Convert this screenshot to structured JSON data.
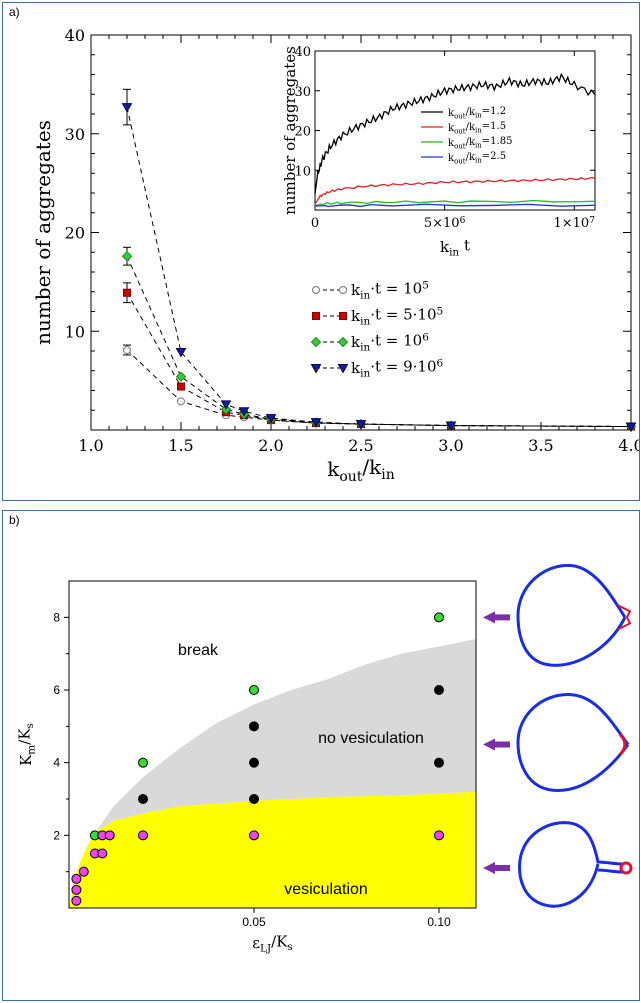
{
  "panel_a_label": "a)",
  "panel_b_label": "b)",
  "chart_data": [
    {
      "type": "line",
      "panel": "a",
      "xlabel": "k_out/k_in",
      "ylabel": "number of aggregates",
      "xlim": [
        1.0,
        4.0
      ],
      "ylim": [
        0,
        40
      ],
      "xticks": [
        "1.0",
        "1.5",
        "2.0",
        "2.5",
        "3.0",
        "3.5",
        "4.0"
      ],
      "yticks": [
        "10",
        "20",
        "30",
        "40"
      ],
      "x": [
        1.2,
        1.5,
        1.75,
        1.85,
        2.0,
        2.25,
        2.5,
        3.0,
        4.0
      ],
      "series": [
        {
          "name": "k_in·t = 10^5",
          "marker": "circle",
          "color": "#888888",
          "fill": "#ffffff",
          "values": [
            8.1,
            2.9,
            1.5,
            1.3,
            1.0,
            0.7,
            0.6,
            0.45,
            0.35
          ],
          "error": [
            0.5,
            0,
            0,
            0,
            0,
            0,
            0,
            0,
            0
          ]
        },
        {
          "name": "k_in·t = 5·10^5",
          "marker": "square",
          "color": "#cc0000",
          "fill": "#cc0000",
          "values": [
            13.9,
            4.4,
            1.8,
            1.5,
            1.0,
            0.7,
            0.6,
            0.45,
            0.35
          ],
          "error": [
            1.0,
            0,
            0,
            0,
            0,
            0,
            0,
            0,
            0
          ]
        },
        {
          "name": "k_in·t = 10^6",
          "marker": "diamond",
          "color": "#33cc33",
          "fill": "#33cc33",
          "values": [
            17.6,
            5.4,
            2.1,
            1.6,
            1.1,
            0.75,
            0.6,
            0.45,
            0.35
          ],
          "error": [
            0.9,
            0,
            0,
            0,
            0,
            0,
            0,
            0,
            0
          ]
        },
        {
          "name": "k_in·t = 9·10^6",
          "marker": "triangle-down",
          "color": "#1a1a99",
          "fill": "#1a1a99",
          "values": [
            32.7,
            7.9,
            2.6,
            1.9,
            1.2,
            0.8,
            0.6,
            0.45,
            0.35
          ],
          "error": [
            1.8,
            0,
            0,
            0,
            0,
            0,
            0,
            0,
            0
          ]
        }
      ]
    },
    {
      "type": "line",
      "panel": "a-inset",
      "xlabel": "k_in t",
      "ylabel": "number of aggregates",
      "xlim": [
        0,
        10000000
      ],
      "ylim": [
        0,
        40
      ],
      "xticks": [
        "0",
        "5×10^6",
        "1×10^7"
      ],
      "yticks": [
        "10",
        "20",
        "30",
        "40"
      ],
      "series": [
        {
          "name": "k_out/k_in=1.2",
          "color": "#000000",
          "x": [
            0,
            100000,
            300000,
            600000,
            1000000,
            1500000,
            2000000,
            2500000,
            3000000,
            3500000,
            4000000,
            4500000,
            5000000,
            5500000,
            6000000,
            6500000,
            7000000,
            7500000,
            8000000,
            8500000,
            9000000,
            9500000,
            10000000,
            10800000
          ],
          "values": [
            4,
            9,
            13,
            16,
            18.5,
            20.5,
            22,
            23.5,
            25.5,
            26.5,
            27.5,
            28.5,
            30,
            30.5,
            31,
            31.5,
            31,
            32.5,
            31.5,
            32.5,
            32,
            33.5,
            31.5,
            29
          ]
        },
        {
          "name": "k_out/k_in=1.5",
          "color": "#dd2222",
          "x": [
            0,
            200000,
            500000,
            1000000,
            2000000,
            3000000,
            4000000,
            5000000,
            6000000,
            7000000,
            8000000,
            9000000,
            10000000,
            10800000
          ],
          "values": [
            1.5,
            3.5,
            4.5,
            5.3,
            6.0,
            6.4,
            6.6,
            7.0,
            7.1,
            7.3,
            7.4,
            7.6,
            7.8,
            8.0
          ]
        },
        {
          "name": "k_out/k_in=1.85",
          "color": "#22bb22",
          "x": [
            0,
            200000,
            1000000,
            3000000,
            6000000,
            10800000
          ],
          "values": [
            1.0,
            1.5,
            1.8,
            2.0,
            2.1,
            2.2
          ]
        },
        {
          "name": "k_out/k_in=2.5",
          "color": "#2233cc",
          "x": [
            0,
            500000,
            3000000,
            10800000
          ],
          "values": [
            1.0,
            1.1,
            1.2,
            1.2
          ]
        }
      ]
    },
    {
      "type": "scatter",
      "panel": "b",
      "xlabel": "ε_LJ/K_s",
      "ylabel": "K_m/K_s",
      "xlim": [
        0,
        0.11
      ],
      "ylim": [
        0,
        9
      ],
      "xticks": [
        "0.05",
        "0.10"
      ],
      "yticks": [
        "2",
        "4",
        "6",
        "8"
      ],
      "regions": [
        "break",
        "no vesiculation",
        "vesiculation"
      ],
      "points": [
        {
          "x": 0.1,
          "y": 8,
          "class": "green"
        },
        {
          "x": 0.05,
          "y": 6,
          "class": "green"
        },
        {
          "x": 0.1,
          "y": 6,
          "class": "black"
        },
        {
          "x": 0.05,
          "y": 5,
          "class": "black"
        },
        {
          "x": 0.02,
          "y": 4,
          "class": "green"
        },
        {
          "x": 0.05,
          "y": 4,
          "class": "black"
        },
        {
          "x": 0.1,
          "y": 4,
          "class": "black"
        },
        {
          "x": 0.02,
          "y": 3,
          "class": "black"
        },
        {
          "x": 0.05,
          "y": 3,
          "class": "black"
        },
        {
          "x": 0.007,
          "y": 2,
          "class": "green"
        },
        {
          "x": 0.009,
          "y": 2,
          "class": "magenta"
        },
        {
          "x": 0.011,
          "y": 2,
          "class": "magenta"
        },
        {
          "x": 0.02,
          "y": 2,
          "class": "magenta"
        },
        {
          "x": 0.05,
          "y": 2,
          "class": "magenta"
        },
        {
          "x": 0.1,
          "y": 2,
          "class": "magenta"
        },
        {
          "x": 0.007,
          "y": 1.5,
          "class": "magenta"
        },
        {
          "x": 0.009,
          "y": 1.5,
          "class": "magenta"
        },
        {
          "x": 0.004,
          "y": 1.0,
          "class": "magenta"
        },
        {
          "x": 0.002,
          "y": 0.8,
          "class": "magenta"
        },
        {
          "x": 0.002,
          "y": 0.5,
          "class": "magenta"
        },
        {
          "x": 0.002,
          "y": 0.2,
          "class": "magenta"
        }
      ],
      "colors": {
        "green": "#33dd33",
        "black": "#000000",
        "magenta": "#ee44ee",
        "grey_region": "#d9d9d9",
        "yellow_region": "#ffff00",
        "arrow": "#7a2ea8",
        "shape_blue": "#1a2ee0",
        "shape_red": "#dd1133"
      }
    }
  ]
}
